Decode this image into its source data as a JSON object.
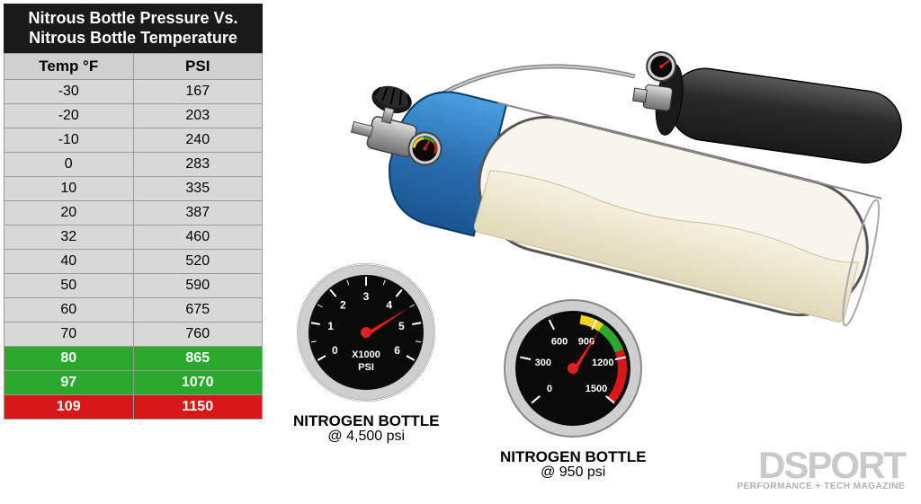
{
  "table": {
    "title_line1": "Nitrous Bottle Pressure Vs.",
    "title_line2": "Nitrous Bottle Temperature",
    "col1": "Temp °F",
    "col2": "PSI",
    "rows": [
      {
        "temp": "-30",
        "psi": "167",
        "cls": "row-gray"
      },
      {
        "temp": "-20",
        "psi": "203",
        "cls": "row-gray"
      },
      {
        "temp": "-10",
        "psi": "240",
        "cls": "row-gray"
      },
      {
        "temp": "0",
        "psi": "283",
        "cls": "row-gray"
      },
      {
        "temp": "10",
        "psi": "335",
        "cls": "row-gray"
      },
      {
        "temp": "20",
        "psi": "387",
        "cls": "row-gray"
      },
      {
        "temp": "32",
        "psi": "460",
        "cls": "row-gray"
      },
      {
        "temp": "40",
        "psi": "520",
        "cls": "row-gray"
      },
      {
        "temp": "50",
        "psi": "590",
        "cls": "row-gray"
      },
      {
        "temp": "60",
        "psi": "675",
        "cls": "row-gray"
      },
      {
        "temp": "70",
        "psi": "760",
        "cls": "row-gray"
      },
      {
        "temp": "80",
        "psi": "865",
        "cls": "row-green"
      },
      {
        "temp": "97",
        "psi": "1070",
        "cls": "row-green"
      },
      {
        "temp": "109",
        "psi": "1150",
        "cls": "row-red"
      }
    ]
  },
  "gauge1": {
    "label": "NITROGEN BOTTLE",
    "sublabel": "@ 4,500 psi",
    "unit_top": "X1000",
    "unit_bot": "PSI",
    "ticks": [
      "0",
      "1",
      "2",
      "3",
      "4",
      "5",
      "6"
    ],
    "needle_angle": 80,
    "face": "#0a0a0a",
    "ring": "#cfcfcf",
    "text": "#ffffff",
    "needle": "#e02020"
  },
  "gauge2": {
    "label": "NITROGEN BOTTLE",
    "sublabel": "@ 950 psi",
    "ticks": [
      "0",
      "300",
      "600",
      "900",
      "1200",
      "1500"
    ],
    "needle_angle": -10,
    "face": "#0a0a0a",
    "ring": "#cfcfcf",
    "text": "#ffffff",
    "needle": "#e02020",
    "arc_yellow": "#f0d020",
    "arc_green": "#2ca82c",
    "arc_red": "#d81818"
  },
  "bottles": {
    "blue_body": "#2a6fb0",
    "blue_body_light": "#4a9fe0",
    "cutaway_fill": "#f0ecd8",
    "cutaway_liquid": "#e8e2c0",
    "black_bottle": "#2a2a2a",
    "black_bottle_hl": "#4a4a4a",
    "metal": "#b8b8b8",
    "metal_dark": "#707070",
    "outline": "#1a1a1a"
  },
  "logo": {
    "main": "DSPORT",
    "sub": "PERFORMANCE + TECH MAGAZINE"
  }
}
